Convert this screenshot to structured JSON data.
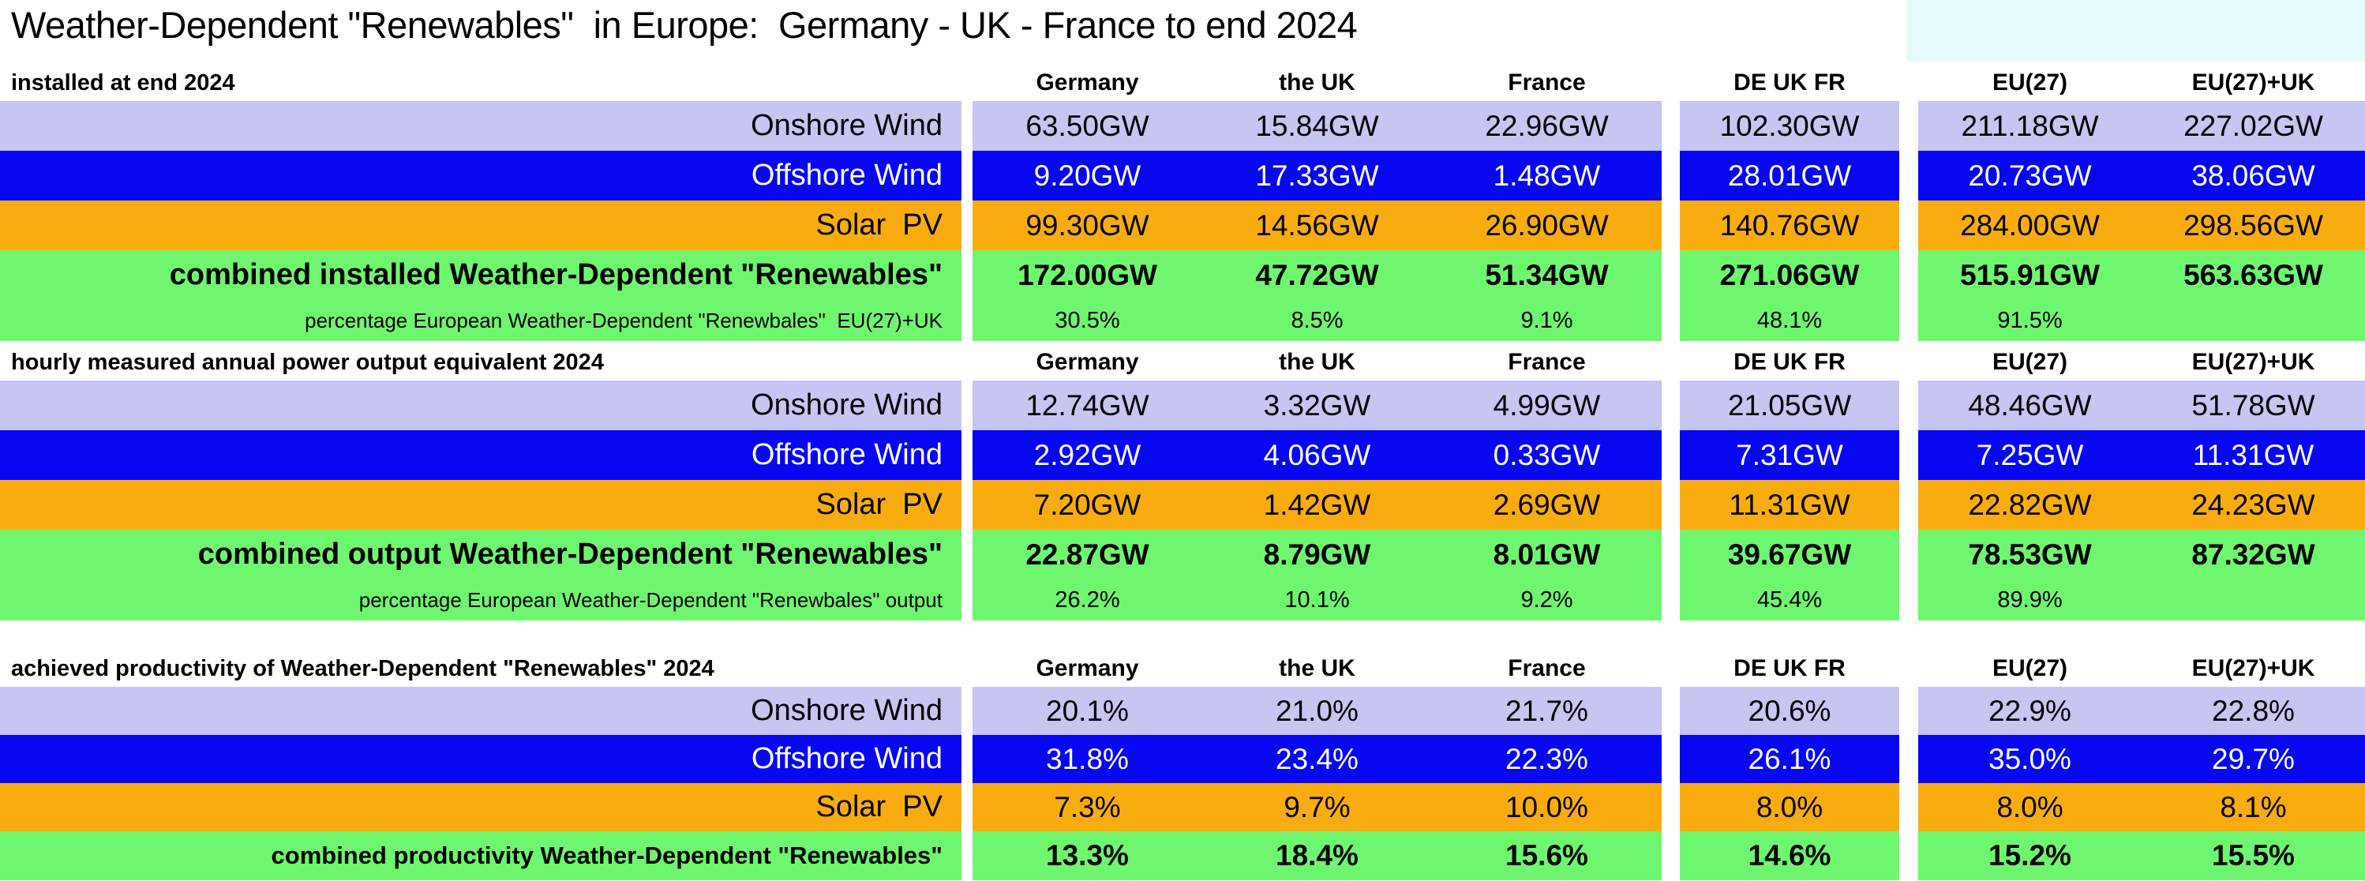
{
  "title": "Weather-Dependent \"Renewables\"  in Europe:  Germany - UK - France to end 2024",
  "columns": [
    "Germany",
    "the UK",
    "France",
    "DE UK FR",
    "EU(27)",
    "EU(27)+UK"
  ],
  "colors": {
    "onshore_lavender": "#C7C5F2",
    "offshore_blue": "#0707F2",
    "solar_orange": "#F9AC10",
    "combined_green": "#6EF66E",
    "highlight_cyan": "#E4FAFB",
    "offshore_text": "#FFFFFF"
  },
  "sections": [
    {
      "header": "installed at end 2024",
      "rows": [
        {
          "type": "onshore",
          "label": "Onshore Wind",
          "values": [
            "63.50GW",
            "15.84GW",
            "22.96GW",
            "102.30GW",
            "211.18GW",
            "227.02GW"
          ]
        },
        {
          "type": "offshore",
          "label": "Offshore Wind",
          "values": [
            "9.20GW",
            "17.33GW",
            "1.48GW",
            "28.01GW",
            "20.73GW",
            "38.06GW"
          ]
        },
        {
          "type": "solar",
          "label": "Solar  PV",
          "values": [
            "99.30GW",
            "14.56GW",
            "26.90GW",
            "140.76GW",
            "284.00GW",
            "298.56GW"
          ]
        },
        {
          "type": "combined",
          "label": "combined installed Weather-Dependent \"Renewables\"",
          "values": [
            "172.00GW",
            "47.72GW",
            "51.34GW",
            "271.06GW",
            "515.91GW",
            "563.63GW"
          ]
        },
        {
          "type": "pct",
          "label": "percentage European Weather-Dependent \"Renewbales\"  EU(27)+UK",
          "values": [
            "30.5%",
            "8.5%",
            "9.1%",
            "48.1%",
            "91.5%",
            ""
          ]
        }
      ]
    },
    {
      "header": "hourly measured annual power output equivalent 2024",
      "rows": [
        {
          "type": "onshore",
          "label": "Onshore Wind",
          "values": [
            "12.74GW",
            "3.32GW",
            "4.99GW",
            "21.05GW",
            "48.46GW",
            "51.78GW"
          ]
        },
        {
          "type": "offshore",
          "label": "Offshore Wind",
          "values": [
            "2.92GW",
            "4.06GW",
            "0.33GW",
            "7.31GW",
            "7.25GW",
            "11.31GW"
          ]
        },
        {
          "type": "solar",
          "label": "Solar  PV",
          "values": [
            "7.20GW",
            "1.42GW",
            "2.69GW",
            "11.31GW",
            "22.82GW",
            "24.23GW"
          ]
        },
        {
          "type": "combined",
          "label": "combined output Weather-Dependent \"Renewables\"",
          "values": [
            "22.87GW",
            "8.79GW",
            "8.01GW",
            "39.67GW",
            "78.53GW",
            "87.32GW"
          ]
        },
        {
          "type": "pct",
          "label": "percentage European Weather-Dependent \"Renewbales\" output",
          "values": [
            "26.2%",
            "10.1%",
            "9.2%",
            "45.4%",
            "89.9%",
            ""
          ]
        }
      ]
    },
    {
      "header": "achieved productivity of Weather-Dependent \"Renewables\" 2024",
      "rows": [
        {
          "type": "onshore",
          "label": "Onshore Wind",
          "values": [
            "20.1%",
            "21.0%",
            "21.7%",
            "20.6%",
            "22.9%",
            "22.8%"
          ]
        },
        {
          "type": "offshore",
          "label": "Offshore Wind",
          "values": [
            "31.8%",
            "23.4%",
            "22.3%",
            "26.1%",
            "35.0%",
            "29.7%"
          ]
        },
        {
          "type": "solar",
          "label": "Solar  PV",
          "values": [
            "7.3%",
            "9.7%",
            "10.0%",
            "8.0%",
            "8.0%",
            "8.1%"
          ]
        },
        {
          "type": "combined",
          "label": "combined productivity Weather-Dependent \"Renewables\"",
          "values": [
            "13.3%",
            "18.4%",
            "15.6%",
            "14.6%",
            "15.2%",
            "15.5%"
          ]
        }
      ]
    }
  ],
  "chart_data": {
    "type": "table",
    "title": "Weather-Dependent \"Renewables\" in Europe: Germany - UK - France to end 2024",
    "columns": [
      "Germany",
      "the UK",
      "France",
      "DE UK FR",
      "EU(27)",
      "EU(27)+UK"
    ],
    "sections": [
      {
        "title": "installed at end 2024",
        "unit": "GW",
        "rows": [
          {
            "name": "Onshore Wind",
            "values": [
              63.5,
              15.84,
              22.96,
              102.3,
              211.18,
              227.02
            ]
          },
          {
            "name": "Offshore Wind",
            "values": [
              9.2,
              17.33,
              1.48,
              28.01,
              20.73,
              38.06
            ]
          },
          {
            "name": "Solar PV",
            "values": [
              99.3,
              14.56,
              26.9,
              140.76,
              284.0,
              298.56
            ]
          },
          {
            "name": "combined installed Weather-Dependent \"Renewables\"",
            "values": [
              172.0,
              47.72,
              51.34,
              271.06,
              515.91,
              563.63
            ]
          },
          {
            "name": "percentage European Weather-Dependent \"Renewbales\" EU(27)+UK",
            "unit": "%",
            "values": [
              30.5,
              8.5,
              9.1,
              48.1,
              91.5,
              null
            ]
          }
        ]
      },
      {
        "title": "hourly measured annual power output equivalent 2024",
        "unit": "GW",
        "rows": [
          {
            "name": "Onshore Wind",
            "values": [
              12.74,
              3.32,
              4.99,
              21.05,
              48.46,
              51.78
            ]
          },
          {
            "name": "Offshore Wind",
            "values": [
              2.92,
              4.06,
              0.33,
              7.31,
              7.25,
              11.31
            ]
          },
          {
            "name": "Solar PV",
            "values": [
              7.2,
              1.42,
              2.69,
              11.31,
              22.82,
              24.23
            ]
          },
          {
            "name": "combined output Weather-Dependent \"Renewables\"",
            "values": [
              22.87,
              8.79,
              8.01,
              39.67,
              78.53,
              87.32
            ]
          },
          {
            "name": "percentage European Weather-Dependent \"Renewbales\" output",
            "unit": "%",
            "values": [
              26.2,
              10.1,
              9.2,
              45.4,
              89.9,
              null
            ]
          }
        ]
      },
      {
        "title": "achieved productivity of Weather-Dependent \"Renewables\" 2024",
        "unit": "%",
        "rows": [
          {
            "name": "Onshore Wind",
            "values": [
              20.1,
              21.0,
              21.7,
              20.6,
              22.9,
              22.8
            ]
          },
          {
            "name": "Offshore Wind",
            "values": [
              31.8,
              23.4,
              22.3,
              26.1,
              35.0,
              29.7
            ]
          },
          {
            "name": "Solar PV",
            "values": [
              7.3,
              9.7,
              10.0,
              8.0,
              8.0,
              8.1
            ]
          },
          {
            "name": "combined productivity Weather-Dependent \"Renewables\"",
            "values": [
              13.3,
              18.4,
              15.6,
              14.6,
              15.2,
              15.5
            ]
          }
        ]
      }
    ]
  }
}
